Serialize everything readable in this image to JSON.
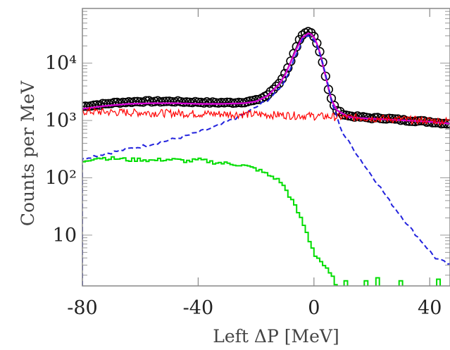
{
  "chart_data": {
    "type": "line",
    "title": "",
    "xlabel": "Left ΔP [MeV]",
    "ylabel": "Counts per MeV",
    "xlim": [
      -80,
      47
    ],
    "ylim": [
      1.3,
      90000
    ],
    "yscale": "log",
    "grid": false,
    "legend": "none",
    "x_ticks": [
      -80,
      -40,
      0,
      40
    ],
    "x_tick_labels": [
      "-80",
      "-40",
      "0",
      "40"
    ],
    "y_ticks": [
      10,
      100,
      1000,
      10000
    ],
    "y_tick_labels": [
      "10",
      "10²",
      "10³",
      "10⁴"
    ],
    "series": [
      {
        "style": "open-circles",
        "color": "#000000",
        "x": [
          -80,
          -76,
          -72,
          -68,
          -64,
          -60,
          -56,
          -52,
          -48,
          -44,
          -40,
          -36,
          -32,
          -28,
          -24,
          -20,
          -18,
          -16,
          -14,
          -12,
          -10,
          -8,
          -7,
          -6,
          -5,
          -4,
          -3,
          -2,
          -1,
          0,
          1,
          2,
          3,
          4,
          5,
          6,
          7,
          8,
          10,
          12,
          16,
          20,
          24,
          28,
          32,
          36,
          40,
          44,
          47
        ],
        "y": [
          1750,
          1850,
          1950,
          2050,
          2100,
          2150,
          2150,
          2150,
          2150,
          2100,
          2100,
          2050,
          2050,
          2050,
          2100,
          2250,
          2450,
          2800,
          3500,
          4500,
          6500,
          11000,
          14500,
          19000,
          25000,
          30000,
          33000,
          35000,
          33500,
          29000,
          23000,
          16000,
          10500,
          6000,
          3500,
          2400,
          1800,
          1500,
          1300,
          1200,
          1150,
          1100,
          1100,
          1050,
          1000,
          980,
          950,
          900,
          880
        ]
      },
      {
        "style": "line",
        "color": "#d400d4",
        "x": [
          -80,
          -72,
          -64,
          -56,
          -48,
          -40,
          -32,
          -24,
          -20,
          -16,
          -12,
          -10,
          -8,
          -6,
          -4,
          -2,
          -1,
          0,
          1,
          2,
          4,
          6,
          8,
          12,
          16,
          24,
          32,
          40,
          47
        ],
        "y": [
          1600,
          1800,
          1950,
          2000,
          2000,
          1950,
          1950,
          2000,
          2150,
          2700,
          4300,
          6200,
          10500,
          18000,
          28000,
          33000,
          32000,
          28000,
          22000,
          15500,
          6000,
          2300,
          1500,
          1150,
          1100,
          1050,
          1000,
          950,
          880
        ]
      },
      {
        "style": "dashed",
        "color": "#2222dd",
        "x": [
          -80,
          -78,
          -76,
          -72,
          -68,
          -64,
          -60,
          -56,
          -52,
          -48,
          -44,
          -40,
          -36,
          -32,
          -28,
          -24,
          -20,
          -16,
          -12,
          -10,
          -8,
          -6,
          -4,
          -2,
          0,
          2,
          4,
          6,
          8,
          10,
          14,
          18,
          22,
          26,
          30,
          34,
          38,
          42,
          47
        ],
        "y": [
          210,
          230,
          240,
          265,
          290,
          320,
          350,
          390,
          430,
          480,
          540,
          620,
          720,
          850,
          1050,
          1300,
          1700,
          2300,
          3500,
          5000,
          8500,
          15000,
          25000,
          32000,
          26000,
          15000,
          6500,
          2200,
          1100,
          600,
          300,
          150,
          80,
          40,
          22,
          12,
          7,
          4,
          3
        ]
      },
      {
        "style": "noisy-line",
        "color": "#ff0000",
        "x": [
          -80,
          -70,
          -60,
          -50,
          -40,
          -30,
          -20,
          -10,
          0,
          10,
          20,
          30,
          40,
          47
        ],
        "y": [
          1450,
          1400,
          1380,
          1350,
          1320,
          1300,
          1280,
          1250,
          1200,
          1150,
          1100,
          1050,
          1000,
          980
        ]
      },
      {
        "style": "step",
        "color": "#00dd00",
        "x": [
          -80,
          -76,
          -72,
          -68,
          -64,
          -60,
          -56,
          -52,
          -48,
          -44,
          -40,
          -36,
          -32,
          -28,
          -24,
          -20,
          -18,
          -16,
          -14,
          -12,
          -10,
          -8,
          -6,
          -4,
          -2,
          0,
          2,
          4,
          6,
          8
        ],
        "y": [
          195,
          225,
          220,
          215,
          205,
          210,
          200,
          210,
          205,
          195,
          205,
          190,
          180,
          175,
          160,
          140,
          125,
          110,
          100,
          85,
          60,
          40,
          25,
          15,
          8,
          4.5,
          3.5,
          2.5,
          1.8,
          1.2
        ]
      },
      {
        "style": "step-spikes",
        "color": "#00dd00",
        "x": [
          11,
          18,
          22,
          30,
          43
        ],
        "y": [
          1.6,
          1.6,
          1.8,
          1.6,
          1.7
        ]
      }
    ]
  }
}
